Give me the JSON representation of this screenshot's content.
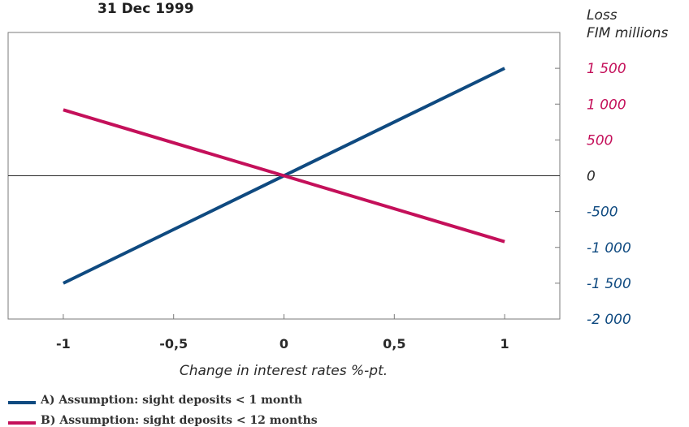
{
  "chart_data": {
    "type": "line",
    "title": "31 Dec 1999",
    "ylabel": [
      "Loss",
      "FIM millions"
    ],
    "xlabel": "Change in interest rates %-pt.",
    "x": [
      -1,
      1
    ],
    "x_ticks": [
      -1,
      -0.5,
      0,
      0.5,
      1
    ],
    "x_tick_labels": [
      "-1",
      "-0,5",
      "0",
      "0,5",
      "1"
    ],
    "xlim": [
      -1.25,
      1.25
    ],
    "ylim": [
      -2000,
      2000
    ],
    "y_ticks": [
      1500,
      1000,
      500,
      0,
      -500,
      -1000,
      -1500,
      -2000
    ],
    "y_tick_labels": [
      "1 500",
      "1 000",
      "500",
      "0",
      "-500",
      "-1 000",
      "-1 500",
      "-2 000"
    ],
    "grid": false,
    "legend_position": "bottom-left",
    "series": [
      {
        "name": "A) Assumption: sight deposits < 1 month",
        "color": "#0f4a80",
        "values": [
          -1500,
          1500
        ]
      },
      {
        "name": "B) Assumption: sight deposits < 12 months",
        "color": "#c4105a",
        "values": [
          920,
          -920
        ]
      }
    ],
    "colors": {
      "positive_ticks": "#c4105a",
      "negative_ticks": "#0f4a80",
      "zero_tick": "#2a2a2a",
      "frame": "#7a7a7a",
      "zero_line": "#2a2a2a"
    }
  }
}
